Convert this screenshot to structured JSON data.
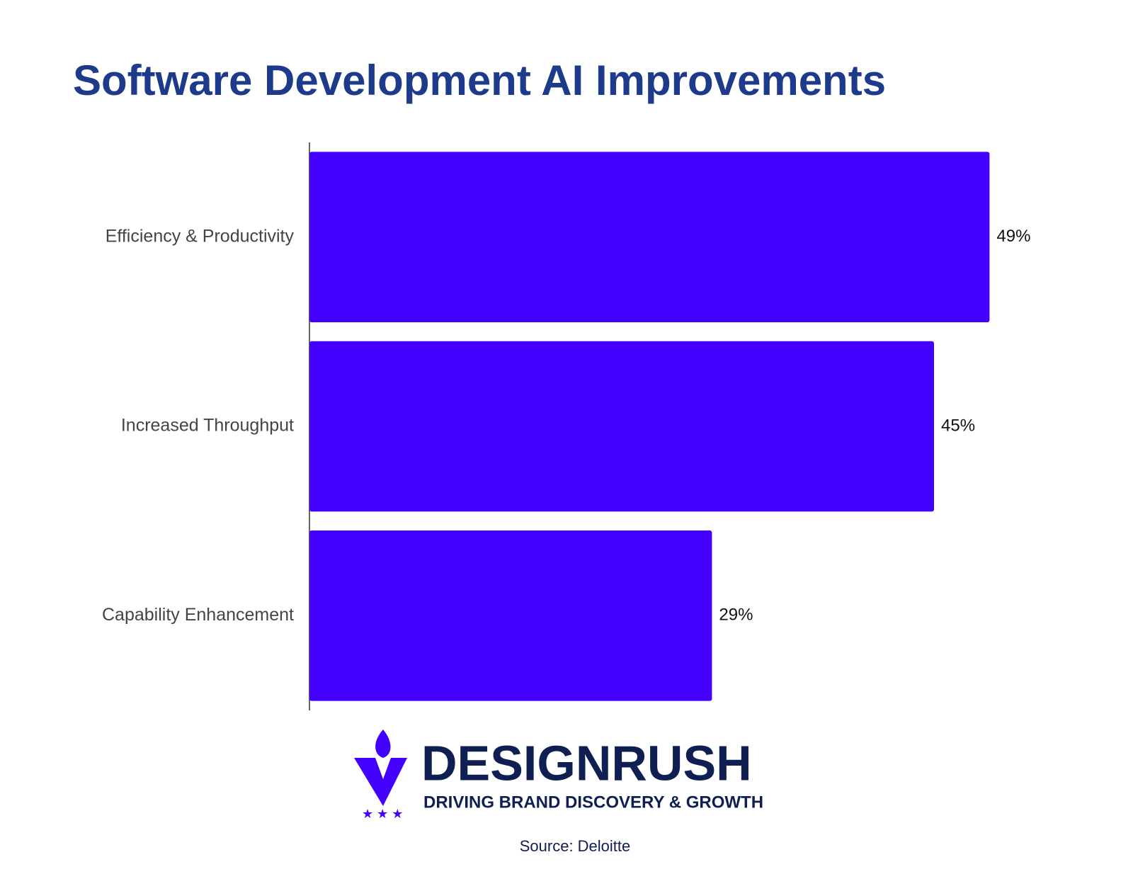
{
  "chart_data": {
    "type": "bar",
    "orientation": "horizontal",
    "title": "Software Development AI Improvements",
    "categories": [
      "Efficiency & Productivity",
      "Increased Throughput",
      "Capability Enhancement"
    ],
    "values": [
      49,
      45,
      29
    ],
    "value_labels": [
      "49%",
      "45%",
      "29%"
    ],
    "color": "#4300ff",
    "xlim": [
      0,
      55
    ]
  },
  "logo": {
    "name": "DESIGNRUSH",
    "tagline": "DRIVING BRAND DISCOVERY & GROWTH"
  },
  "source": "Source: Deloitte"
}
